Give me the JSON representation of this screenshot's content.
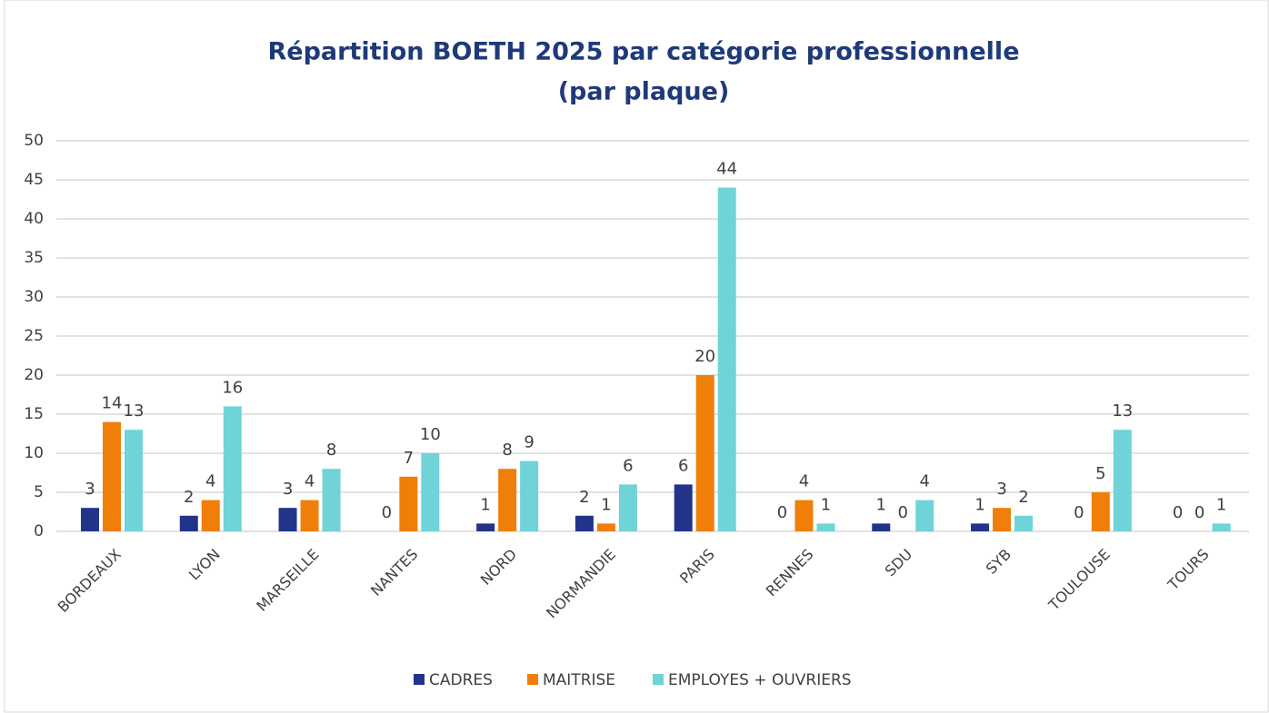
{
  "chart_data": {
    "type": "bar",
    "title": [
      "Répartition BOETH 2025 par catégorie professionnelle",
      "(par plaque)"
    ],
    "categories": [
      "BORDEAUX",
      "LYON",
      "MARSEILLE",
      "NANTES",
      "NORD",
      "NORMANDIE",
      "PARIS",
      "RENNES",
      "SDU",
      "SYB",
      "TOULOUSE",
      "TOURS"
    ],
    "series": [
      {
        "name": "CADRES",
        "color": "#22348a",
        "values": [
          3,
          2,
          3,
          0,
          1,
          2,
          6,
          0,
          1,
          1,
          0,
          0
        ]
      },
      {
        "name": "MAITRISE",
        "color": "#f07f09",
        "values": [
          14,
          4,
          4,
          7,
          8,
          1,
          20,
          4,
          0,
          3,
          5,
          0
        ]
      },
      {
        "name": "EMPLOYES + OUVRIERS",
        "color": "#6fd3d8",
        "values": [
          13,
          16,
          8,
          10,
          9,
          6,
          44,
          1,
          4,
          2,
          13,
          1
        ]
      }
    ],
    "ylim": [
      0,
      50
    ],
    "yticks": [
      0,
      5,
      10,
      15,
      20,
      25,
      30,
      35,
      40,
      45,
      50
    ],
    "grid": true,
    "legend": "bottom"
  }
}
